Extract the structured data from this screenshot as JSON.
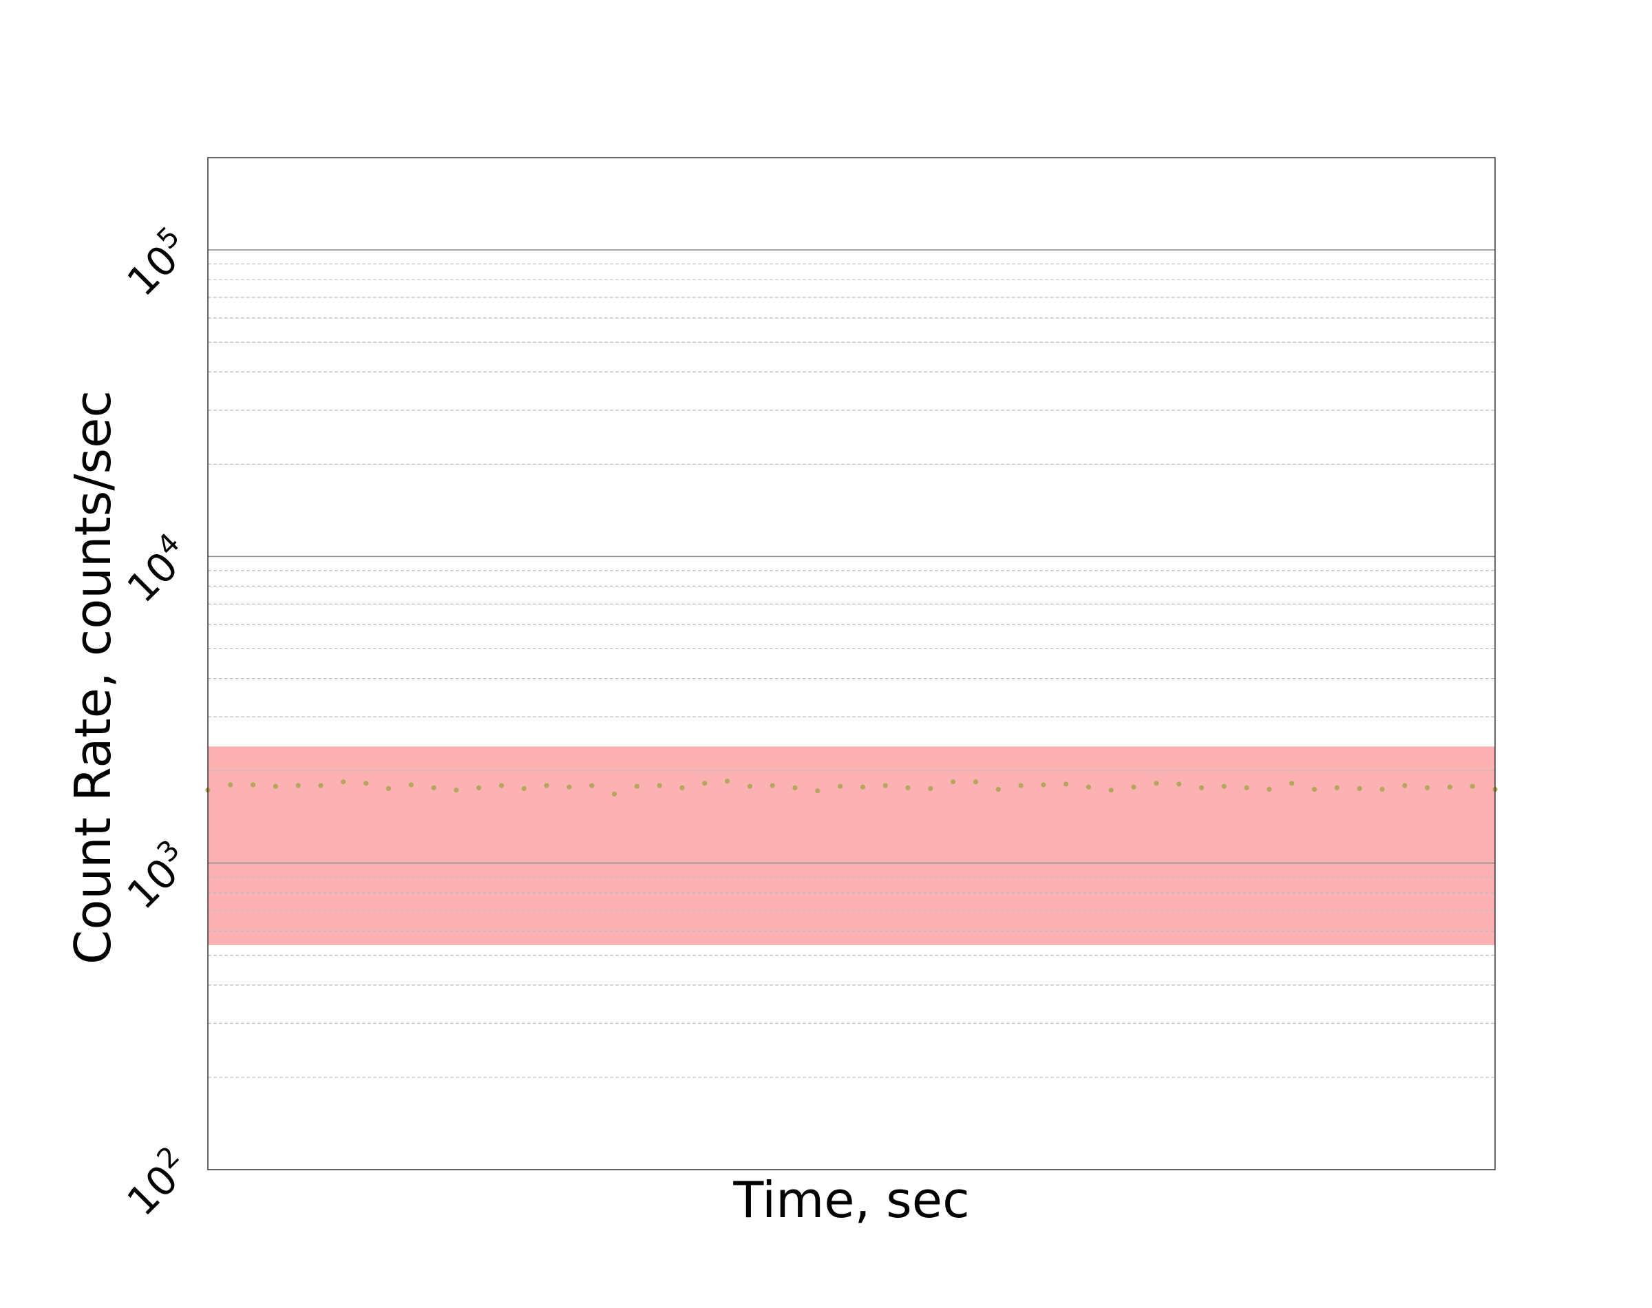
{
  "chart_data": {
    "type": "scatter",
    "title": "",
    "xlabel": "Time, sec",
    "ylabel": "Count Rate, counts/sec",
    "yscale": "log",
    "ylim": [
      100,
      200000
    ],
    "xlim": [
      0,
      57
    ],
    "y_major_ticks": [
      {
        "base": "10",
        "exp": "2",
        "value": 100
      },
      {
        "base": "10",
        "exp": "3",
        "value": 1000
      },
      {
        "base": "10",
        "exp": "4",
        "value": 10000
      },
      {
        "base": "10",
        "exp": "5",
        "value": 100000
      }
    ],
    "x_tick_labels": [],
    "grid": "major solid, minor dashed (horizontal)",
    "band": {
      "y_low": 540,
      "y_high": 2400,
      "color": "#fca5a5"
    },
    "marker_color": "#b5a55d",
    "series": [
      {
        "x": [
          0,
          1,
          2,
          3,
          4,
          5,
          6,
          7,
          8,
          9,
          10,
          11,
          12,
          13,
          14,
          15,
          16,
          17,
          18,
          19,
          20,
          21,
          22,
          23,
          24,
          25,
          26,
          27,
          28,
          29,
          30,
          31,
          32,
          33,
          34,
          35,
          36,
          37,
          38,
          39,
          40,
          41,
          42,
          43,
          44,
          45,
          46,
          47,
          48,
          49,
          50,
          51,
          52,
          53,
          54,
          55,
          56,
          57
        ],
        "y": [
          1730,
          1800,
          1800,
          1780,
          1790,
          1790,
          1840,
          1820,
          1750,
          1800,
          1760,
          1730,
          1760,
          1790,
          1750,
          1790,
          1770,
          1790,
          1680,
          1780,
          1790,
          1760,
          1820,
          1850,
          1780,
          1790,
          1760,
          1720,
          1780,
          1770,
          1790,
          1760,
          1750,
          1840,
          1840,
          1740,
          1790,
          1800,
          1810,
          1770,
          1730,
          1770,
          1820,
          1810,
          1760,
          1780,
          1760,
          1740,
          1820,
          1740,
          1760,
          1750,
          1740,
          1790,
          1760,
          1770,
          1780,
          1740
        ]
      }
    ]
  }
}
